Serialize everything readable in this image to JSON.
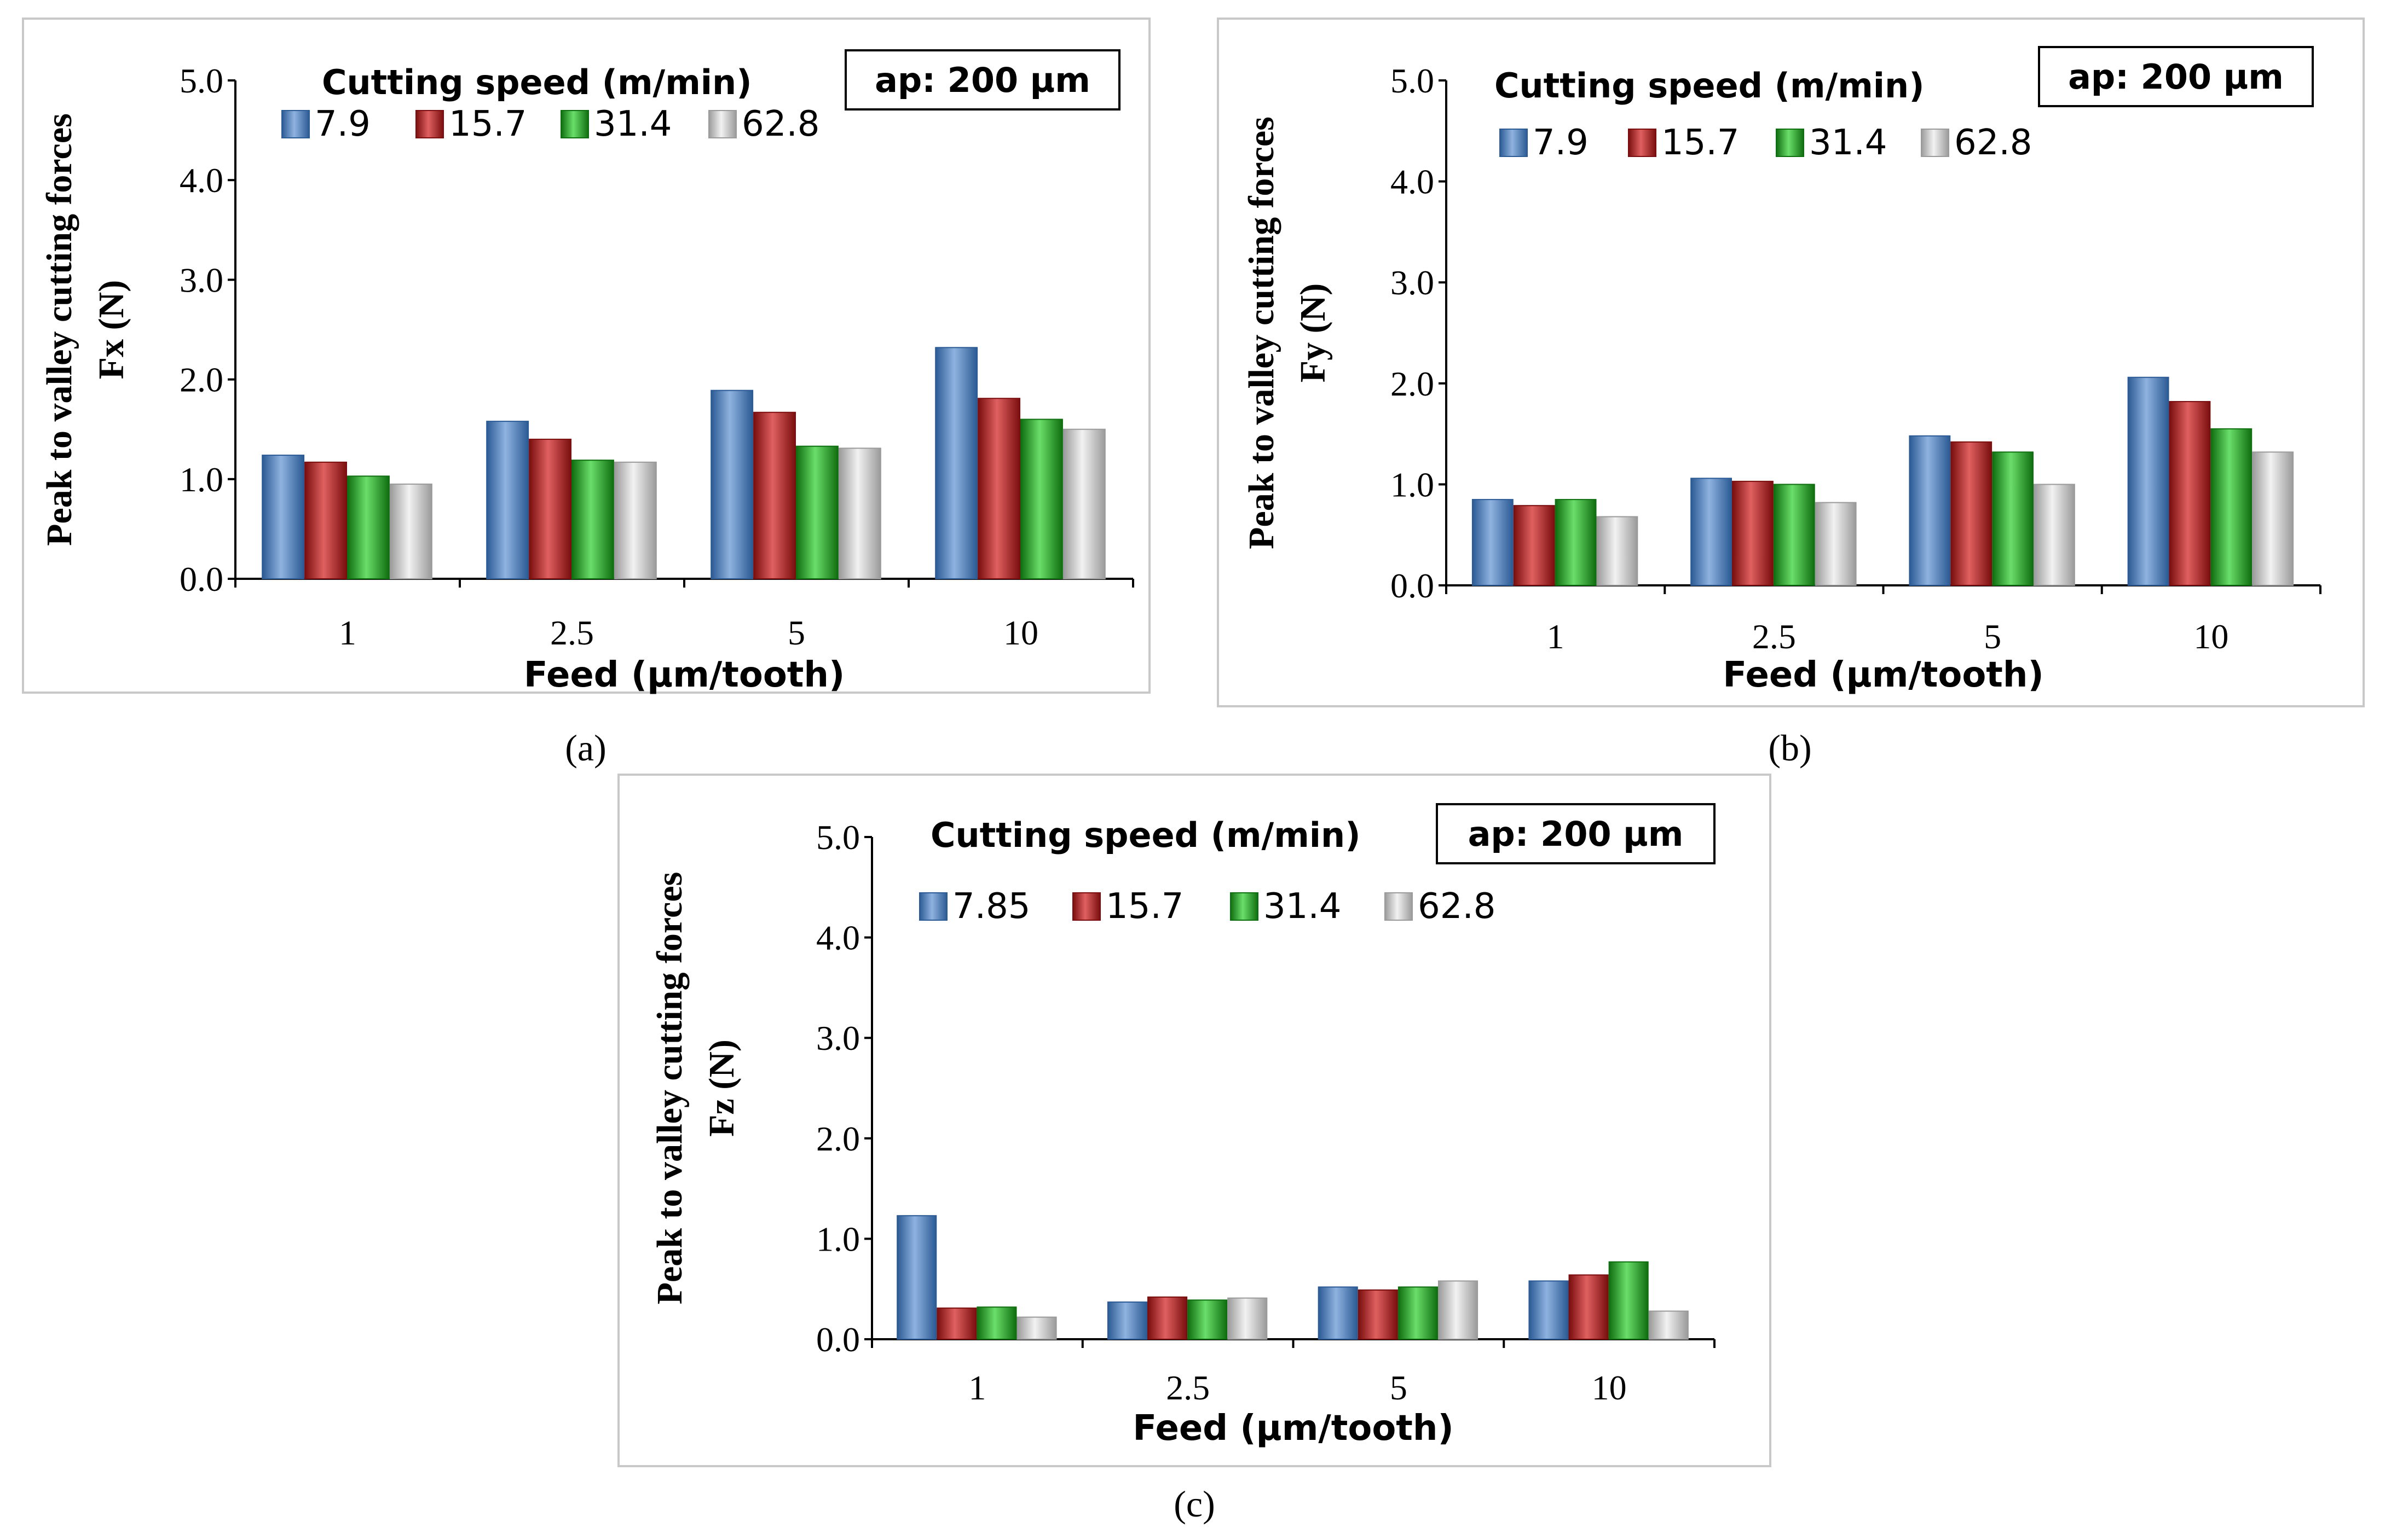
{
  "colors": {
    "series": [
      "#4a7ebb",
      "#b22222",
      "#22a822",
      "#cfcfcf"
    ],
    "series_dark": [
      "#2b5a94",
      "#7a0e0e",
      "#0f6e0f",
      "#9a9a9a"
    ],
    "series_light": [
      "#8fb3e0",
      "#e06060",
      "#6ade6a",
      "#f2f2f2"
    ],
    "frame": "#c8c8c8"
  },
  "chart_data": [
    {
      "type": "bar",
      "panel_label": "(a)",
      "categories": [
        "1",
        "2.5",
        "5",
        "10"
      ],
      "series": [
        {
          "name": "7.9",
          "values": [
            1.24,
            1.58,
            1.89,
            2.32
          ]
        },
        {
          "name": "15.7",
          "values": [
            1.17,
            1.4,
            1.67,
            1.81
          ]
        },
        {
          "name": "31.4",
          "values": [
            1.03,
            1.19,
            1.33,
            1.6
          ]
        },
        {
          "name": "62.8",
          "values": [
            0.95,
            1.17,
            1.31,
            1.5
          ]
        }
      ],
      "ylabel_line1": "Peak to valley cutting forces",
      "ylabel_line2": "Fx (N)",
      "xlabel": "Feed (µm/tooth)",
      "legend_title": "Cutting speed (m/min)",
      "annotation": "ap: 200 µm",
      "ylim": [
        0,
        5
      ],
      "yticks": [
        "0.0",
        "1.0",
        "2.0",
        "3.0",
        "4.0",
        "5.0"
      ]
    },
    {
      "type": "bar",
      "panel_label": "(b)",
      "categories": [
        "1",
        "2.5",
        "5",
        "10"
      ],
      "series": [
        {
          "name": "7.9",
          "values": [
            0.85,
            1.06,
            1.48,
            2.06
          ]
        },
        {
          "name": "15.7",
          "values": [
            0.79,
            1.03,
            1.42,
            1.82
          ]
        },
        {
          "name": "31.4",
          "values": [
            0.85,
            1.0,
            1.32,
            1.55
          ]
        },
        {
          "name": "62.8",
          "values": [
            0.68,
            0.82,
            1.0,
            1.32
          ]
        }
      ],
      "ylabel_line1": "Peak to valley cutting forces",
      "ylabel_line2": "Fy (N)",
      "xlabel": "Feed (µm/tooth)",
      "legend_title": "Cutting speed (m/min)",
      "annotation": "ap: 200 µm",
      "ylim": [
        0,
        5
      ],
      "yticks": [
        "0.0",
        "1.0",
        "2.0",
        "3.0",
        "4.0",
        "5.0"
      ]
    },
    {
      "type": "bar",
      "panel_label": "(c)",
      "categories": [
        "1",
        "2.5",
        "5",
        "10"
      ],
      "series": [
        {
          "name": "7.85",
          "values": [
            1.23,
            0.37,
            0.52,
            0.58
          ]
        },
        {
          "name": "15.7",
          "values": [
            0.31,
            0.42,
            0.49,
            0.64
          ]
        },
        {
          "name": "31.4",
          "values": [
            0.32,
            0.39,
            0.52,
            0.77
          ]
        },
        {
          "name": "62.8",
          "values": [
            0.22,
            0.41,
            0.58,
            0.28
          ]
        }
      ],
      "ylabel_line1": "Peak to valley cutting forces",
      "ylabel_line2": "Fz (N)",
      "xlabel": "Feed (µm/tooth)",
      "legend_title": "Cutting speed (m/min)",
      "annotation": "ap: 200 µm",
      "ylim": [
        0,
        5
      ],
      "yticks": [
        "0.0",
        "1.0",
        "2.0",
        "3.0",
        "4.0",
        "5.0"
      ]
    }
  ]
}
